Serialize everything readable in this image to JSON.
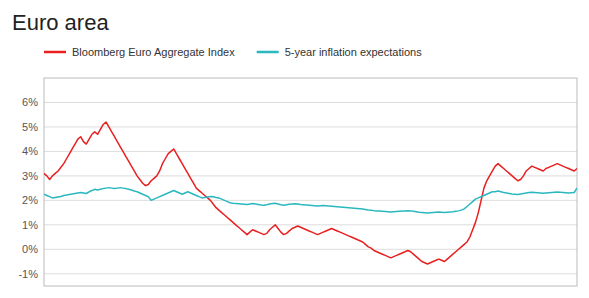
{
  "chart_data": {
    "type": "line",
    "title": "Euro area",
    "series": [
      {
        "name": "Bloomberg Euro Aggregate Index",
        "color": "#e82020",
        "values": [
          3.1,
          3.0,
          2.85,
          3.0,
          3.1,
          3.2,
          3.35,
          3.5,
          3.7,
          3.9,
          4.1,
          4.3,
          4.5,
          4.6,
          4.4,
          4.3,
          4.5,
          4.7,
          4.8,
          4.7,
          4.9,
          5.1,
          5.2,
          5.0,
          4.8,
          4.6,
          4.4,
          4.2,
          4.0,
          3.8,
          3.6,
          3.4,
          3.2,
          3.0,
          2.85,
          2.7,
          2.6,
          2.65,
          2.8,
          2.9,
          3.0,
          3.2,
          3.5,
          3.7,
          3.9,
          4.0,
          4.1,
          3.9,
          3.7,
          3.5,
          3.3,
          3.1,
          2.9,
          2.7,
          2.5,
          2.4,
          2.3,
          2.2,
          2.1,
          2.0,
          1.85,
          1.7,
          1.6,
          1.5,
          1.4,
          1.3,
          1.2,
          1.1,
          1.0,
          0.9,
          0.8,
          0.7,
          0.6,
          0.7,
          0.8,
          0.75,
          0.7,
          0.65,
          0.6,
          0.65,
          0.8,
          0.9,
          1.0,
          0.85,
          0.7,
          0.6,
          0.65,
          0.75,
          0.85,
          0.9,
          0.95,
          0.9,
          0.85,
          0.8,
          0.75,
          0.7,
          0.65,
          0.6,
          0.65,
          0.7,
          0.75,
          0.8,
          0.85,
          0.8,
          0.75,
          0.7,
          0.65,
          0.6,
          0.55,
          0.5,
          0.45,
          0.4,
          0.35,
          0.3,
          0.2,
          0.1,
          0.05,
          -0.05,
          -0.1,
          -0.15,
          -0.2,
          -0.25,
          -0.3,
          -0.35,
          -0.3,
          -0.25,
          -0.2,
          -0.15,
          -0.1,
          -0.05,
          -0.1,
          -0.2,
          -0.3,
          -0.4,
          -0.5,
          -0.55,
          -0.6,
          -0.55,
          -0.5,
          -0.45,
          -0.4,
          -0.45,
          -0.5,
          -0.4,
          -0.3,
          -0.2,
          -0.1,
          0.0,
          0.1,
          0.2,
          0.3,
          0.5,
          0.8,
          1.1,
          1.5,
          2.0,
          2.5,
          2.8,
          3.0,
          3.2,
          3.4,
          3.5,
          3.4,
          3.3,
          3.2,
          3.1,
          3.0,
          2.9,
          2.8,
          2.85,
          3.0,
          3.2,
          3.3,
          3.4,
          3.35,
          3.3,
          3.25,
          3.2,
          3.3,
          3.35,
          3.4,
          3.45,
          3.5,
          3.45,
          3.4,
          3.35,
          3.3,
          3.25,
          3.2,
          3.3
        ]
      },
      {
        "name": "5-year inflation expectations",
        "color": "#2ab8c0",
        "values": [
          2.25,
          2.2,
          2.15,
          2.1,
          2.12,
          2.14,
          2.16,
          2.2,
          2.22,
          2.24,
          2.26,
          2.28,
          2.3,
          2.32,
          2.3,
          2.28,
          2.35,
          2.4,
          2.45,
          2.42,
          2.45,
          2.48,
          2.5,
          2.52,
          2.5,
          2.48,
          2.5,
          2.52,
          2.5,
          2.48,
          2.45,
          2.42,
          2.38,
          2.35,
          2.3,
          2.25,
          2.2,
          2.15,
          2.0,
          2.05,
          2.1,
          2.15,
          2.2,
          2.25,
          2.3,
          2.35,
          2.4,
          2.35,
          2.3,
          2.25,
          2.3,
          2.35,
          2.3,
          2.25,
          2.2,
          2.15,
          2.1,
          2.12,
          2.14,
          2.16,
          2.15,
          2.12,
          2.1,
          2.05,
          2.0,
          1.95,
          1.9,
          1.88,
          1.87,
          1.86,
          1.85,
          1.84,
          1.83,
          1.85,
          1.87,
          1.85,
          1.83,
          1.81,
          1.8,
          1.82,
          1.85,
          1.87,
          1.88,
          1.85,
          1.82,
          1.8,
          1.82,
          1.84,
          1.85,
          1.86,
          1.85,
          1.83,
          1.82,
          1.81,
          1.8,
          1.79,
          1.78,
          1.77,
          1.78,
          1.79,
          1.78,
          1.77,
          1.76,
          1.75,
          1.74,
          1.73,
          1.72,
          1.71,
          1.7,
          1.69,
          1.68,
          1.67,
          1.66,
          1.65,
          1.63,
          1.61,
          1.6,
          1.58,
          1.57,
          1.56,
          1.55,
          1.54,
          1.53,
          1.52,
          1.53,
          1.54,
          1.55,
          1.56,
          1.57,
          1.58,
          1.57,
          1.55,
          1.53,
          1.51,
          1.5,
          1.49,
          1.48,
          1.49,
          1.5,
          1.51,
          1.52,
          1.51,
          1.5,
          1.51,
          1.52,
          1.53,
          1.55,
          1.57,
          1.6,
          1.65,
          1.75,
          1.85,
          1.95,
          2.05,
          2.1,
          2.15,
          2.2,
          2.25,
          2.3,
          2.35,
          2.35,
          2.38,
          2.35,
          2.32,
          2.3,
          2.28,
          2.26,
          2.25,
          2.24,
          2.26,
          2.28,
          2.3,
          2.32,
          2.33,
          2.32,
          2.31,
          2.3,
          2.29,
          2.3,
          2.31,
          2.32,
          2.33,
          2.34,
          2.33,
          2.32,
          2.31,
          2.3,
          2.31,
          2.32,
          2.5
        ]
      }
    ],
    "ylim": [
      -1.5,
      7.0
    ],
    "yticks": [
      {
        "value": -1,
        "label": "-1%"
      },
      {
        "value": 0,
        "label": "0%"
      },
      {
        "value": 1,
        "label": "1%"
      },
      {
        "value": 2,
        "label": "2%"
      },
      {
        "value": 3,
        "label": "3%"
      },
      {
        "value": 4,
        "label": "4%"
      },
      {
        "value": 5,
        "label": "5%"
      },
      {
        "value": 6,
        "label": "6%"
      }
    ],
    "grid": true,
    "legend": "upper left",
    "tick_labels": "y"
  }
}
